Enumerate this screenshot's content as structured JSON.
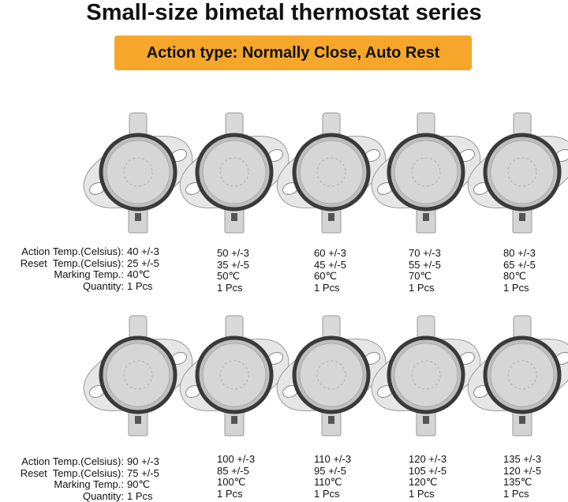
{
  "title": "Small-size bimetal thermostat series",
  "badge": "Action type: Normally Close, Auto Rest",
  "rows": [
    {
      "labels": [
        "Action Temp.(Celsius):",
        "Reset  Temp.(Celsius):",
        "Marking Temp.:",
        "Quantity:"
      ],
      "items": [
        {
          "action": "40 +/-3",
          "reset": "25 +/-5",
          "marking": "40℃",
          "quantity": "1 Pcs"
        },
        {
          "action": "50 +/-3",
          "reset": "35 +/-5",
          "marking": "50℃",
          "quantity": "1 Pcs"
        },
        {
          "action": "60 +/-3",
          "reset": "45 +/-5",
          "marking": "60℃",
          "quantity": "1 Pcs"
        },
        {
          "action": "70 +/-3",
          "reset": "55 +/-5",
          "marking": "70℃",
          "quantity": "1 Pcs"
        },
        {
          "action": "80 +/-3",
          "reset": "65 +/-5",
          "marking": "80℃",
          "quantity": "1 Pcs"
        }
      ]
    },
    {
      "labels": [
        "Action Temp.(Celsius):",
        "Reset  Temp.(Celsius):",
        "Marking Temp.:",
        "Quantity:"
      ],
      "items": [
        {
          "action": "90 +/-3",
          "reset": "75 +/-5",
          "marking": "90℃",
          "quantity": "1 Pcs"
        },
        {
          "action": "100 +/-3",
          "reset": "85 +/-5",
          "marking": "100℃",
          "quantity": "1 Pcs"
        },
        {
          "action": "110 +/-3",
          "reset": "95 +/-5",
          "marking": "110℃",
          "quantity": "1 Pcs"
        },
        {
          "action": "120 +/-3",
          "reset": "105 +/-5",
          "marking": "120℃",
          "quantity": "1 Pcs"
        },
        {
          "action": "135 +/-3",
          "reset": "120 +/-5",
          "marking": "135℃",
          "quantity": "1 Pcs"
        }
      ]
    }
  ]
}
